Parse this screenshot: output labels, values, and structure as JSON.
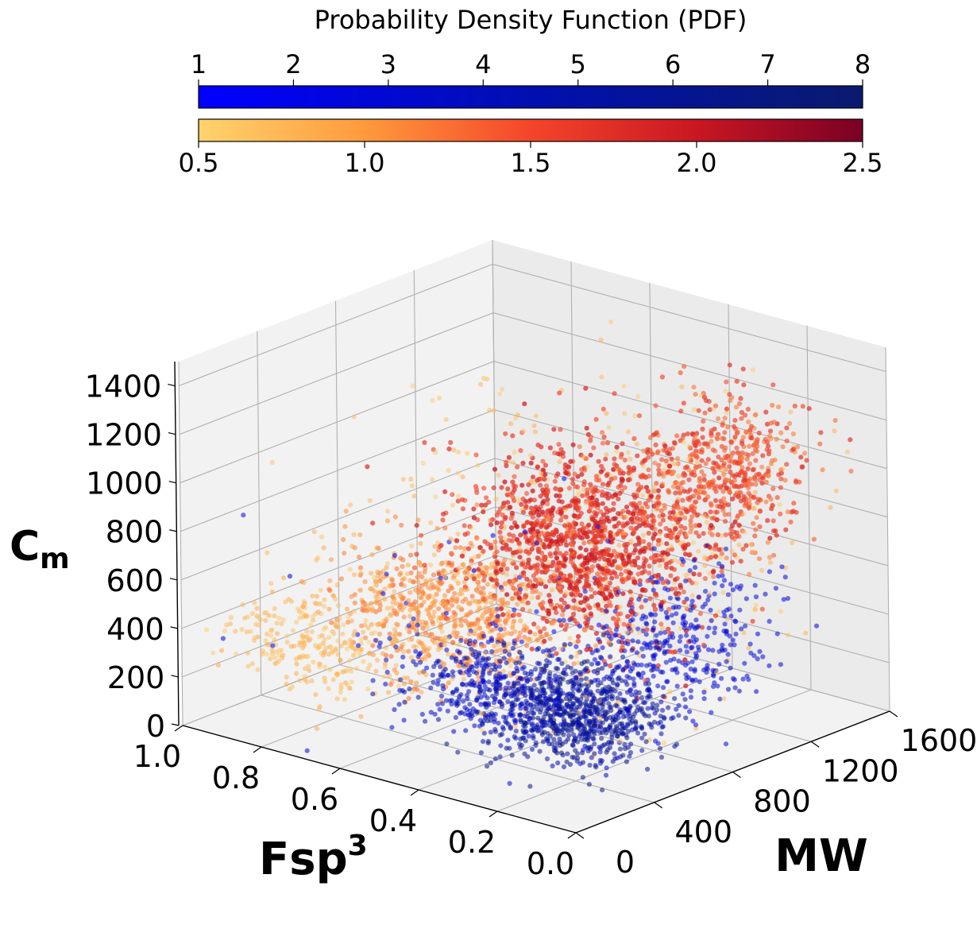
{
  "chart_data": {
    "type": "scatter",
    "subtype": "3d-scatter",
    "title": "",
    "colorbar_title": "Probability Density Function (PDF)",
    "colorbars": [
      {
        "name": "blue",
        "range": [
          1,
          8
        ],
        "tick_labels": [
          "1",
          "2",
          "3",
          "4",
          "5",
          "6",
          "7",
          "8"
        ],
        "colors": [
          "#0000ff",
          "#0a1a6e"
        ]
      },
      {
        "name": "orange-red",
        "range": [
          0.5,
          2.5
        ],
        "tick_labels": [
          "0.5",
          "1.0",
          "1.5",
          "2.0",
          "2.5"
        ],
        "colors": [
          "#ffd36e",
          "#ff9a3c",
          "#f4452a",
          "#c91722",
          "#7a0025"
        ]
      }
    ],
    "axes": {
      "x": {
        "label": "MW",
        "range": [
          0,
          1600
        ],
        "tick_labels": [
          "0",
          "400",
          "800",
          "1200",
          "1600"
        ]
      },
      "y": {
        "label": "Fsp",
        "label_sup": "3",
        "range": [
          0,
          1
        ],
        "tick_labels": [
          "0.0",
          "0.2",
          "0.4",
          "0.6",
          "0.8",
          "1.0"
        ]
      },
      "z": {
        "label": "C",
        "label_sub": "m",
        "range": [
          0,
          1500
        ],
        "tick_labels": [
          "0",
          "200",
          "400",
          "600",
          "800",
          "1000",
          "1200",
          "1400"
        ]
      }
    },
    "grid": true,
    "series": [
      {
        "color_scale": "orange-red",
        "clusters": [
          {
            "mw": 760,
            "fsp": 0.35,
            "cm": 800,
            "mw_sd": 170,
            "fsp_sd": 0.12,
            "cm_sd": 170,
            "pdf": 1.7,
            "n": 1300
          },
          {
            "mw": 1150,
            "fsp": 0.2,
            "cm": 1020,
            "mw_sd": 150,
            "fsp_sd": 0.08,
            "cm_sd": 150,
            "pdf": 1.45,
            "n": 600
          },
          {
            "mw": 460,
            "fsp": 0.55,
            "cm": 520,
            "mw_sd": 140,
            "fsp_sd": 0.12,
            "cm_sd": 130,
            "pdf": 1.05,
            "n": 700
          },
          {
            "mw": 260,
            "fsp": 0.8,
            "cm": 340,
            "mw_sd": 90,
            "fsp_sd": 0.1,
            "cm_sd": 100,
            "pdf": 0.75,
            "n": 280
          },
          {
            "mw": 800,
            "fsp": 0.35,
            "cm": 750,
            "mw_sd": 420,
            "fsp_sd": 0.25,
            "cm_sd": 330,
            "pdf": 0.7,
            "n": 500
          }
        ]
      },
      {
        "color_scale": "blue",
        "clusters": [
          {
            "mw": 400,
            "fsp": 0.2,
            "cm": 280,
            "mw_sd": 130,
            "fsp_sd": 0.09,
            "cm_sd": 90,
            "pdf": 6.0,
            "n": 750
          },
          {
            "mw": 280,
            "fsp": 0.35,
            "cm": 360,
            "mw_sd": 90,
            "fsp_sd": 0.1,
            "cm_sd": 90,
            "pdf": 4.0,
            "n": 380
          },
          {
            "mw": 760,
            "fsp": 0.1,
            "cm": 470,
            "mw_sd": 200,
            "fsp_sd": 0.07,
            "cm_sd": 150,
            "pdf": 3.0,
            "n": 380
          },
          {
            "mw": 450,
            "fsp": 0.3,
            "cm": 420,
            "mw_sd": 350,
            "fsp_sd": 0.25,
            "cm_sd": 260,
            "pdf": 2.0,
            "n": 140
          }
        ]
      }
    ]
  }
}
